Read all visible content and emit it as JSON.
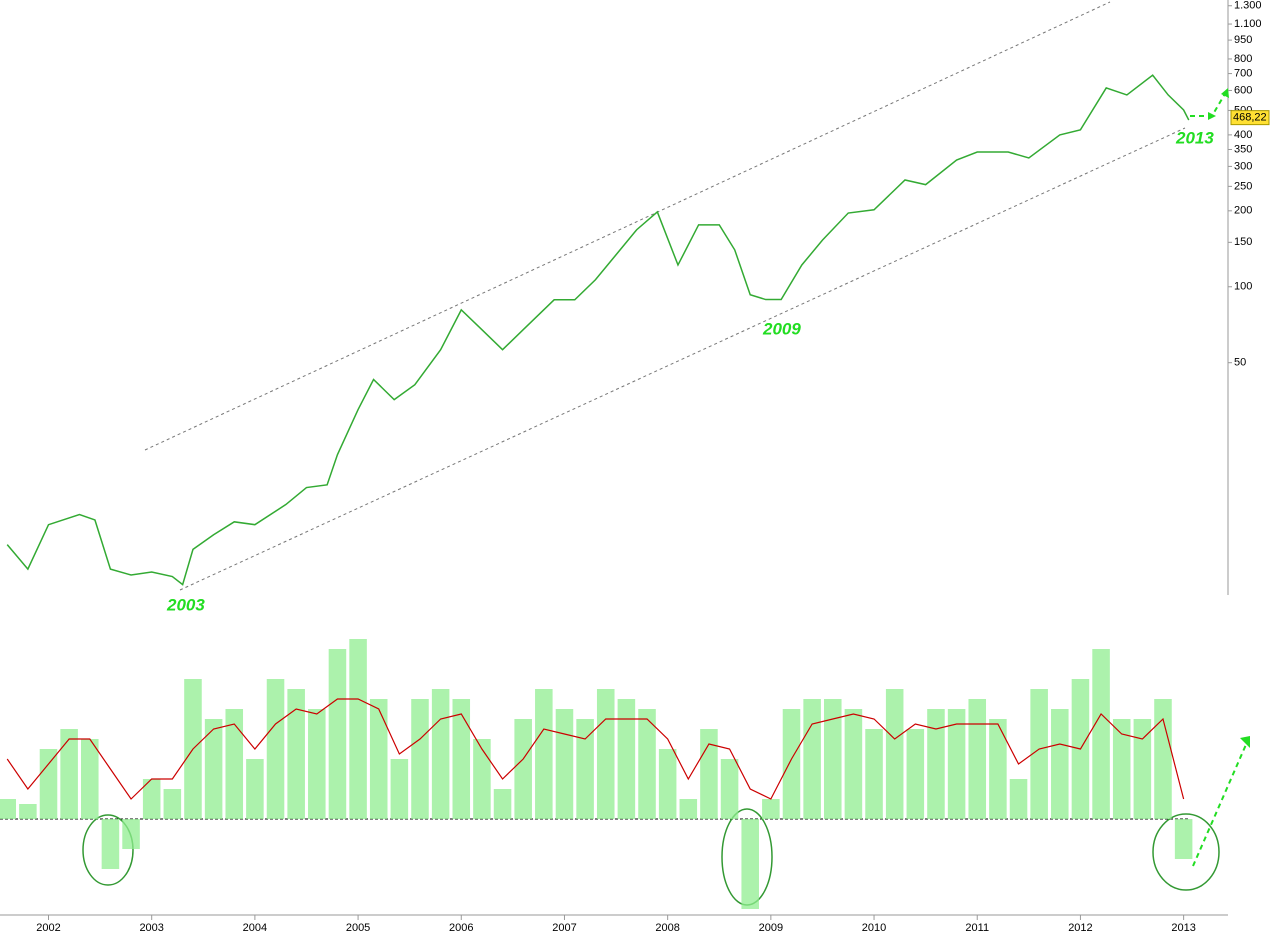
{
  "chart_data": [
    {
      "type": "line",
      "log_scale": true,
      "color": "#33aa33",
      "xlim": [
        2001.53,
        2013.43
      ],
      "ylim": [
        6,
        1370
      ],
      "yticks": [
        {
          "value": 1300,
          "label": "1.300"
        },
        {
          "value": 1100,
          "label": "1.100"
        },
        950,
        800,
        700,
        600,
        500,
        400,
        350,
        300,
        250,
        200,
        150,
        100,
        50
      ],
      "x": [
        2001.6,
        2001.8,
        2002.0,
        2002.3,
        2002.45,
        2002.6,
        2002.8,
        2003.0,
        2003.2,
        2003.3,
        2003.4,
        2003.6,
        2003.8,
        2004.0,
        2004.3,
        2004.5,
        2004.7,
        2004.8,
        2005.0,
        2005.15,
        2005.35,
        2005.55,
        2005.8,
        2006.0,
        2006.2,
        2006.4,
        2006.6,
        2006.9,
        2007.1,
        2007.3,
        2007.5,
        2007.7,
        2007.9,
        2008.1,
        2008.3,
        2008.5,
        2008.65,
        2008.8,
        2008.95,
        2009.1,
        2009.3,
        2009.5,
        2009.75,
        2010.0,
        2010.3,
        2010.5,
        2010.8,
        2011.0,
        2011.3,
        2011.5,
        2011.8,
        2012.0,
        2012.25,
        2012.45,
        2012.7,
        2012.85,
        2013.0,
        2013.05
      ],
      "values": [
        9.5,
        7.6,
        11.4,
        12.5,
        11.9,
        7.6,
        7.2,
        7.4,
        7.1,
        6.6,
        9.1,
        10.4,
        11.7,
        11.4,
        13.7,
        16.0,
        16.4,
        21.6,
        32.6,
        42.9,
        35.7,
        40.9,
        56.3,
        81.0,
        67.6,
        56.3,
        67.6,
        88.8,
        88.8,
        106.6,
        133.9,
        168.3,
        198,
        122,
        176,
        176,
        140,
        93,
        89,
        89,
        122,
        153,
        196,
        202,
        265,
        254,
        318,
        342,
        342,
        324,
        400,
        419,
        614,
        576,
        690,
        576,
        502,
        458
      ],
      "last_value": {
        "value": 468.22,
        "label": "468,22"
      },
      "labels": [
        "2003",
        "2009",
        "2013"
      ]
    },
    {
      "type": "bar",
      "xlim": [
        2001.53,
        2013.43
      ],
      "ylim": [
        -96,
        200
      ],
      "xticks": [
        2002,
        2003,
        2004,
        2005,
        2006,
        2007,
        2008,
        2009,
        2010,
        2011,
        2012,
        2013
      ],
      "x": [
        2001.6,
        2001.8,
        2002.0,
        2002.2,
        2002.4,
        2002.6,
        2002.8,
        2003.0,
        2003.2,
        2003.4,
        2003.6,
        2003.8,
        2004.0,
        2004.2,
        2004.4,
        2004.6,
        2004.8,
        2005.0,
        2005.2,
        2005.4,
        2005.6,
        2005.8,
        2006.0,
        2006.2,
        2006.4,
        2006.6,
        2006.8,
        2007.0,
        2007.2,
        2007.4,
        2007.6,
        2007.8,
        2008.0,
        2008.2,
        2008.4,
        2008.6,
        2008.8,
        2009.0,
        2009.2,
        2009.4,
        2009.6,
        2009.8,
        2010.0,
        2010.2,
        2010.4,
        2010.6,
        2010.8,
        2011.0,
        2011.2,
        2011.4,
        2011.6,
        2011.8,
        2012.0,
        2012.2,
        2012.4,
        2012.6,
        2012.8,
        2013.0
      ],
      "series": [
        {
          "color": "#90ee90",
          "values": [
            20,
            15,
            70,
            90,
            80,
            -50,
            -30,
            40,
            30,
            140,
            100,
            110,
            60,
            140,
            130,
            110,
            170,
            180,
            120,
            60,
            120,
            130,
            120,
            80,
            30,
            100,
            130,
            110,
            100,
            130,
            120,
            110,
            70,
            20,
            90,
            60,
            -90,
            20,
            110,
            120,
            120,
            110,
            90,
            130,
            90,
            110,
            110,
            120,
            100,
            40,
            130,
            110,
            140,
            170,
            100,
            100,
            120,
            -40
          ]
        },
        {
          "color": "#cc0000",
          "type": "line",
          "values": [
            60,
            30,
            55,
            80,
            80,
            50,
            20,
            40,
            40,
            70,
            90,
            95,
            70,
            95,
            110,
            105,
            120,
            120,
            110,
            65,
            80,
            100,
            105,
            70,
            40,
            60,
            90,
            85,
            80,
            100,
            100,
            100,
            80,
            40,
            75,
            70,
            30,
            20,
            60,
            95,
            100,
            105,
            100,
            80,
            95,
            90,
            95,
            95,
            95,
            55,
            70,
            75,
            70,
            105,
            85,
            80,
            100,
            20
          ]
        }
      ]
    }
  ]
}
